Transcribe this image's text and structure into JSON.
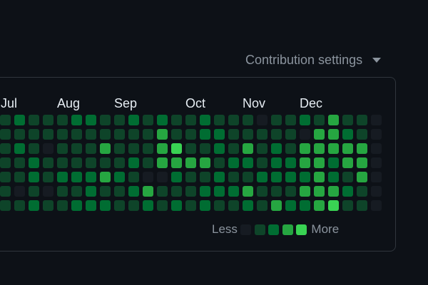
{
  "settings": {
    "label": "Contribution settings",
    "icon": "caret-down-icon"
  },
  "months": [
    "Jul",
    "Aug",
    "Sep",
    "Oct",
    "Nov",
    "Dec"
  ],
  "legend": {
    "less": "Less",
    "more": "More"
  },
  "colors": {
    "level0": "#161b22",
    "level1": "#0e4429",
    "level2": "#006d32",
    "level3": "#26a641",
    "level4": "#39d353"
  },
  "contributions": [
    [
      1,
      1,
      1,
      1,
      1,
      1,
      1
    ],
    [
      2,
      1,
      2,
      1,
      1,
      0,
      1
    ],
    [
      1,
      1,
      1,
      2,
      2,
      1,
      2
    ],
    [
      1,
      1,
      0,
      1,
      1,
      0,
      1
    ],
    [
      1,
      1,
      1,
      1,
      2,
      1,
      1
    ],
    [
      2,
      1,
      1,
      1,
      2,
      1,
      2
    ],
    [
      2,
      1,
      1,
      1,
      2,
      2,
      2
    ],
    [
      1,
      1,
      3,
      1,
      3,
      1,
      2
    ],
    [
      1,
      1,
      1,
      1,
      2,
      1,
      1
    ],
    [
      2,
      1,
      1,
      2,
      1,
      2,
      1
    ],
    [
      1,
      1,
      1,
      1,
      0,
      3,
      2
    ],
    [
      2,
      3,
      3,
      3,
      0,
      1,
      1
    ],
    [
      1,
      1,
      4,
      3,
      2,
      1,
      2
    ],
    [
      1,
      1,
      1,
      3,
      1,
      1,
      1
    ],
    [
      2,
      2,
      1,
      3,
      1,
      2,
      2
    ],
    [
      1,
      2,
      2,
      1,
      2,
      2,
      1
    ],
    [
      1,
      1,
      1,
      2,
      1,
      2,
      1
    ],
    [
      1,
      1,
      3,
      2,
      1,
      3,
      2
    ],
    [
      0,
      1,
      1,
      1,
      2,
      1,
      1
    ],
    [
      1,
      1,
      2,
      2,
      2,
      1,
      3
    ],
    [
      1,
      1,
      1,
      2,
      2,
      1,
      2
    ],
    [
      2,
      0,
      3,
      3,
      2,
      3,
      2
    ],
    [
      1,
      3,
      3,
      3,
      3,
      3,
      3
    ],
    [
      3,
      3,
      3,
      2,
      2,
      3,
      4
    ],
    [
      1,
      2,
      3,
      3,
      1,
      2,
      1
    ],
    [
      1,
      1,
      3,
      3,
      3,
      1,
      1
    ],
    [
      0,
      0,
      0,
      0,
      0,
      0,
      0
    ]
  ]
}
